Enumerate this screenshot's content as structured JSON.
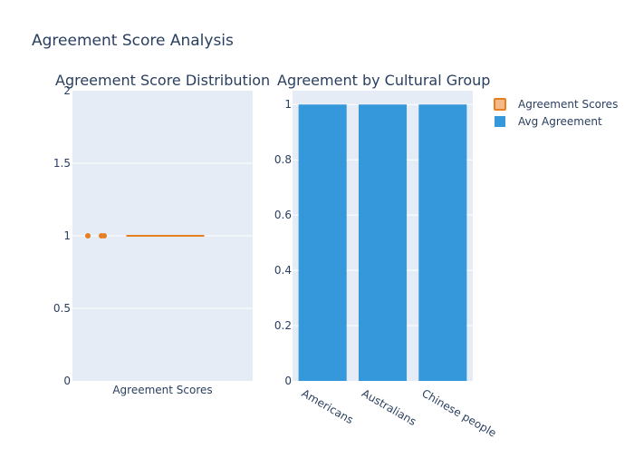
{
  "chart_data": {
    "title": "Agreement Score Analysis",
    "colors": {
      "box": "#e67e22",
      "box_fill": "#f5b887",
      "bar": "#3498db",
      "plot_bg": "#e5ecf6",
      "grid": "#ffffff",
      "text": "#2a3f5f"
    },
    "legend": {
      "placement": "top-right",
      "entries": [
        "Agreement Scores",
        "Avg Agreement"
      ]
    },
    "panels": [
      {
        "type": "box",
        "title": "Agreement Score Distribution",
        "categories": [
          "Agreement Scores"
        ],
        "series": [
          {
            "name": "Agreement Scores",
            "q1": 1,
            "median": 1,
            "q3": 1,
            "whisker_low": 1,
            "whisker_high": 1,
            "outliers": [
              1,
              1,
              1
            ]
          }
        ],
        "ylim": [
          0,
          2
        ],
        "yticks": [
          0,
          0.5,
          1,
          1.5,
          2
        ],
        "ytick_labels": [
          "0",
          "0.5",
          "1",
          "1.5",
          "2"
        ],
        "grid": true
      },
      {
        "type": "bar",
        "title": "Agreement by Cultural Group",
        "categories": [
          "Americans",
          "Australians",
          "Chinese people"
        ],
        "series": [
          {
            "name": "Avg Agreement",
            "values": [
              1,
              1,
              1
            ]
          }
        ],
        "ylim": [
          0,
          1.05
        ],
        "yticks": [
          0,
          0.2,
          0.4,
          0.6,
          0.8,
          1
        ],
        "ytick_labels": [
          "0",
          "0.2",
          "0.4",
          "0.6",
          "0.8",
          "1"
        ],
        "grid": true
      }
    ]
  }
}
